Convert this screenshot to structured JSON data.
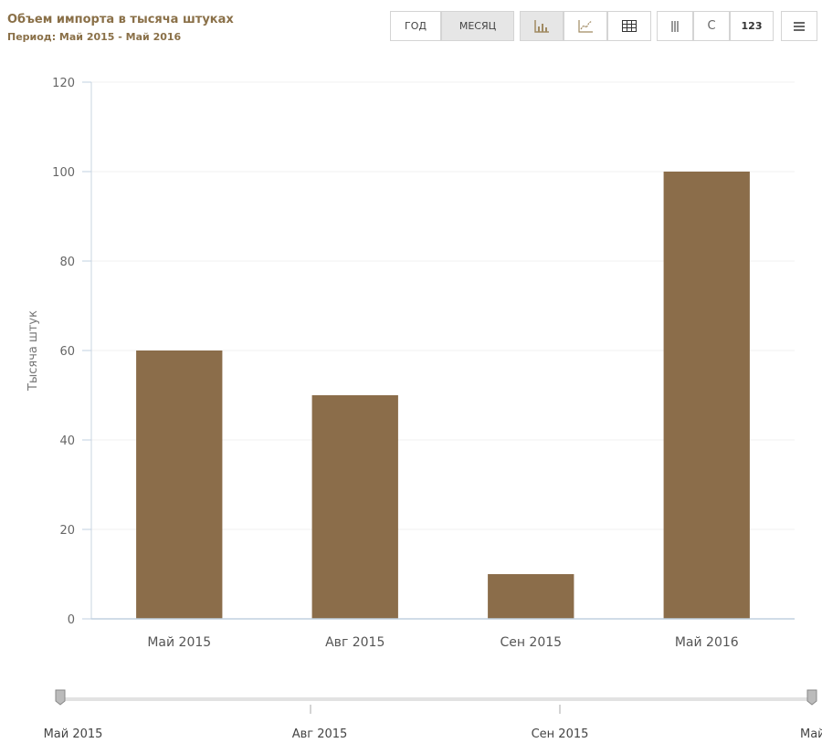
{
  "header": {
    "title": "Объем импорта в тысяча штуках",
    "subtitle": "Период: Май 2015 - Май 2016"
  },
  "toolbar": {
    "year_label": "ГОД",
    "month_label": "МЕСЯЦ",
    "bar_view_icon": "bar-chart-icon",
    "line_view_icon": "line-chart-icon",
    "table_view_icon": "table-icon",
    "columns_icon": "columns-icon",
    "refresh_label": "C",
    "values_label": "123",
    "menu_icon": "hamburger-menu-icon"
  },
  "chart_data": {
    "type": "bar",
    "categories": [
      "Май 2015",
      "Авг 2015",
      "Сен 2015",
      "Май 2016"
    ],
    "values": [
      60,
      50,
      10,
      100
    ],
    "title": "Объем импорта в тысяча штуках",
    "subtitle": "Период: Май 2015 - Май 2016",
    "xlabel": "",
    "ylabel": "Тысяча штук",
    "ylim": [
      0,
      120
    ],
    "yticks": [
      0,
      20,
      40,
      60,
      80,
      100,
      120
    ],
    "grid": true,
    "bar_color": "#8b6d4a"
  },
  "navigator": {
    "labels": [
      "Май 2015",
      "Авг 2015",
      "Сен 2015",
      "Май"
    ]
  }
}
